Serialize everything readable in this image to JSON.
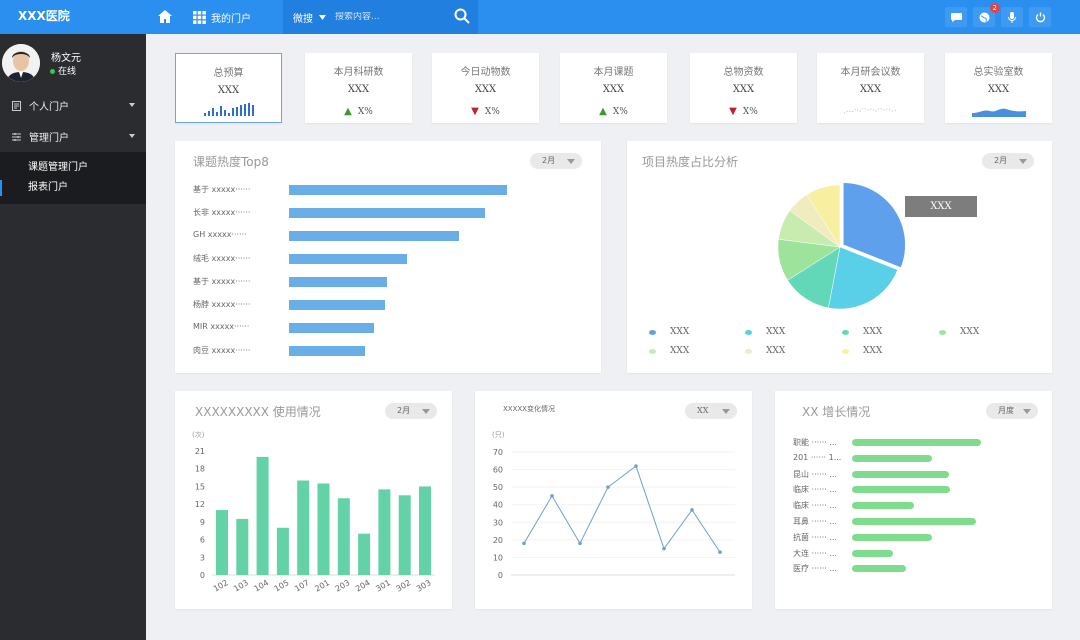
{
  "header": {
    "brand": "XXX医院",
    "portal_label": "我的门户",
    "search_select": "微搜",
    "search_placeholder": "搜索内容...",
    "notifications": "2"
  },
  "user": {
    "name": "杨文元",
    "status": "在线"
  },
  "sidebar": {
    "items": [
      {
        "label": "个人门户"
      },
      {
        "label": "管理门户"
      }
    ],
    "sub": [
      {
        "label": "课题管理门户"
      },
      {
        "label": "报表门户"
      }
    ]
  },
  "stats": [
    {
      "title": "总预算",
      "value": "XXX",
      "mini": "bars"
    },
    {
      "title": "本月科研数",
      "value": "XXX",
      "trend": "up",
      "pct": "X%"
    },
    {
      "title": "今日动物数",
      "value": "XXX",
      "trend": "down",
      "pct": "X%"
    },
    {
      "title": "本月课题",
      "value": "XXX",
      "trend": "up",
      "pct": "X%"
    },
    {
      "title": "总物资数",
      "value": "XXX",
      "trend": "down",
      "pct": "X%"
    },
    {
      "title": "本月研会议数",
      "value": "XXX",
      "mini": "dots"
    },
    {
      "title": "总实验室数",
      "value": "XXX",
      "mini": "area"
    }
  ],
  "colors": {
    "up": "#3a9a2a",
    "down": "#c0202a",
    "accent": "#2b8ff0"
  },
  "top8": {
    "title": "课题热度Top8",
    "filter": "2月",
    "chart_data": {
      "type": "bar",
      "categories": [
        "基于 xxxxx······",
        "长非 xxxxx······",
        "GH xxxxx······",
        "绒毛 xxxxx······",
        "基于 xxxxx······",
        "杨脖 xxxxx······",
        "MIR xxxxx······",
        "肉豆 xxxxx······"
      ],
      "values": [
        100,
        90,
        78,
        54,
        45,
        44,
        39,
        35
      ],
      "xlim": [
        0,
        100
      ]
    }
  },
  "pie": {
    "title": "项目热度占比分析",
    "filter": "2月",
    "tooltip": "XXX",
    "chart_data": {
      "type": "pie",
      "slices": [
        {
          "label": "XXX",
          "value": 31,
          "color": "#5ea0ec"
        },
        {
          "label": "XXX",
          "value": 22,
          "color": "#5ad0e8"
        },
        {
          "label": "XXX",
          "value": 13,
          "color": "#62d8b8"
        },
        {
          "label": "XXX",
          "value": 11,
          "color": "#9ee39c"
        },
        {
          "label": "XXX",
          "value": 8,
          "color": "#c8ecb0"
        },
        {
          "label": "XXX",
          "value": 6,
          "color": "#f0ecc0"
        },
        {
          "label": "XXX",
          "value": 9,
          "color": "#f8f0a0"
        }
      ]
    }
  },
  "usage": {
    "title": "XXXXXXXXX 使用情况",
    "filter": "2月",
    "unit": "(次)",
    "chart_data": {
      "type": "bar",
      "categories": [
        "102",
        "103",
        "104",
        "105",
        "107",
        "201",
        "203",
        "204",
        "301",
        "302",
        "303"
      ],
      "values": [
        11,
        9.5,
        20,
        8,
        16,
        15.5,
        13,
        7,
        14.5,
        13.5,
        15
      ],
      "ylim": [
        0,
        21
      ],
      "yticks": [
        0,
        3,
        6,
        9,
        12,
        15,
        18,
        21
      ]
    }
  },
  "trend": {
    "title": "XXXXX变化情况",
    "filter": "XX",
    "unit": "(只)",
    "chart_data": {
      "type": "line",
      "values": [
        18,
        45,
        18,
        50,
        62,
        15,
        37,
        13
      ],
      "ylim": [
        0,
        70
      ],
      "yticks": [
        0,
        10,
        20,
        30,
        40,
        50,
        60,
        70
      ]
    }
  },
  "growth": {
    "title": "XX 增长情况",
    "filter": "月度",
    "chart_data": {
      "type": "bar",
      "categories": [
        "职能 ······ ...",
        "201 ······ 1...",
        "昆山 ······ ...",
        "临床 ······ ...",
        "临床 ······ ...",
        "耳鼻 ······ ...",
        "抗菌 ······ ...",
        "大连 ······ ...",
        "医疗 ······ ..."
      ],
      "values": [
        100,
        62,
        75,
        76,
        48,
        96,
        62,
        32,
        42
      ],
      "xlim": [
        0,
        100
      ]
    }
  }
}
